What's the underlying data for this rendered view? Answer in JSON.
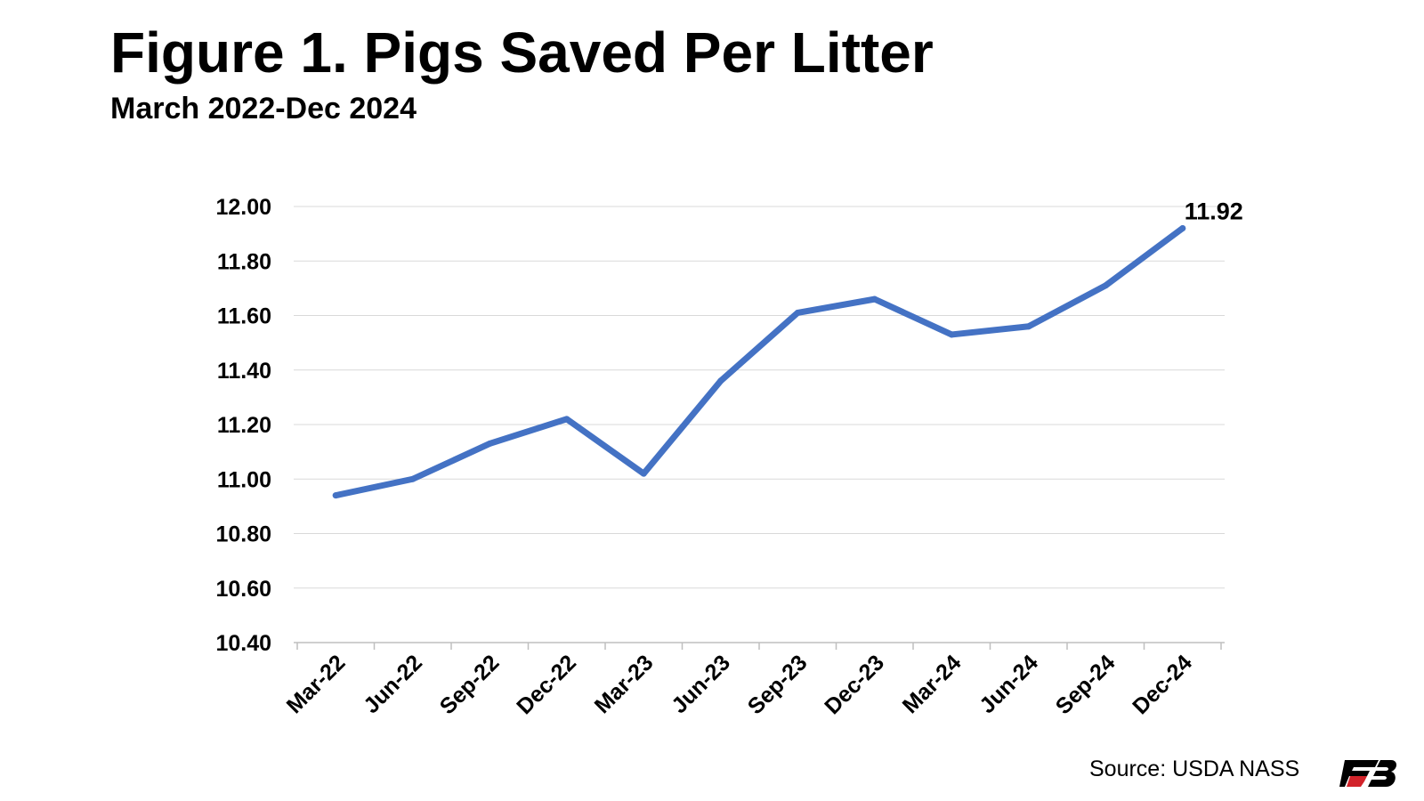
{
  "chart_data": {
    "type": "line",
    "title": "Figure 1. Pigs Saved Per Litter",
    "subtitle": "March 2022-Dec 2024",
    "categories": [
      "Mar-22",
      "Jun-22",
      "Sep-22",
      "Dec-22",
      "Mar-23",
      "Jun-23",
      "Sep-23",
      "Dec-23",
      "Mar-24",
      "Jun-24",
      "Sep-24",
      "Dec-24"
    ],
    "series": [
      {
        "values": [
          10.94,
          11.0,
          11.13,
          11.22,
          11.02,
          11.36,
          11.61,
          11.66,
          11.53,
          11.56,
          11.71,
          11.92
        ],
        "color": "#4472C4"
      }
    ],
    "ylim": [
      10.4,
      12.0
    ],
    "yticks": [
      "10.40",
      "10.60",
      "10.80",
      "11.00",
      "11.20",
      "11.40",
      "11.60",
      "11.80",
      "12.00"
    ],
    "data_label": "11.92",
    "grid": true,
    "legend": "none"
  },
  "footer": {
    "source": "Source: USDA NASS",
    "logo": "farm-bureau-logo"
  }
}
